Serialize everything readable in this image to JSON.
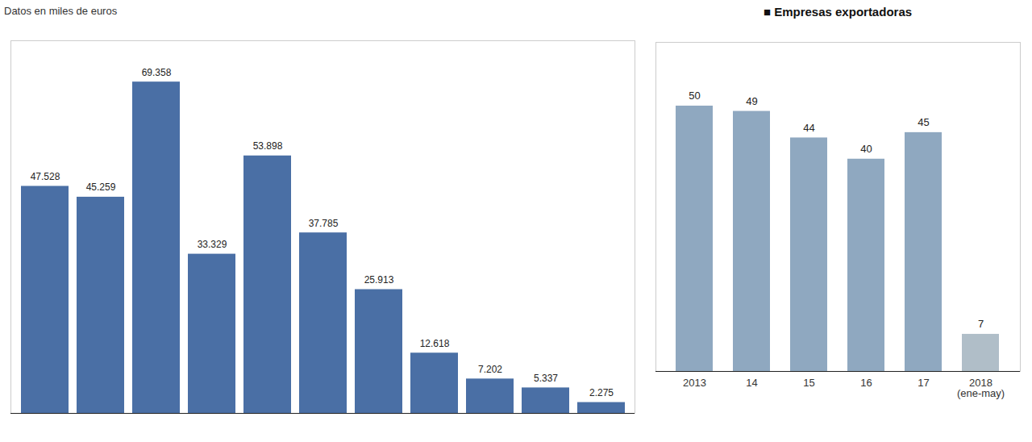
{
  "chart_data": [
    {
      "type": "bar",
      "subtitle": "Datos en miles de euros",
      "categories": [
        null,
        null,
        null,
        null,
        null,
        null,
        null,
        null,
        null,
        null,
        null
      ],
      "values": [
        47528,
        45259,
        69358,
        33329,
        53898,
        37785,
        25913,
        12618,
        7202,
        5337,
        2275
      ],
      "value_labels": [
        "47.528",
        "45.259",
        "69.358",
        "33.329",
        "53.898",
        "37.785",
        "25.913",
        "12.618",
        "7.202",
        "5.337",
        "2.275"
      ],
      "color": "#4a6fa5",
      "ylim": [
        0,
        78000
      ],
      "data_labels": true,
      "tick_labels": false
    },
    {
      "type": "bar",
      "title": "■ Empresas exportadoras",
      "categories": [
        "2013",
        "14",
        "15",
        "16",
        "17",
        "2018\n(ene-may)"
      ],
      "values": [
        50,
        49,
        44,
        40,
        45,
        7
      ],
      "colors": [
        "#8fa8c0",
        "#8fa8c0",
        "#8fa8c0",
        "#8fa8c0",
        "#8fa8c0",
        "#b0bec8"
      ],
      "ylim": [
        0,
        62
      ],
      "data_labels": true,
      "tick_labels": "x"
    }
  ]
}
